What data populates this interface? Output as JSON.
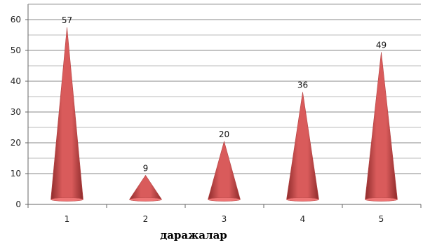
{
  "chart_data": {
    "type": "bar",
    "shape": "cone",
    "categories": [
      "1",
      "2",
      "3",
      "4",
      "5"
    ],
    "values": [
      57,
      9,
      20,
      36,
      49
    ],
    "title": "",
    "xlabel": "даражалар",
    "ylabel": "",
    "ylim": [
      0,
      60
    ],
    "yticks": [
      0,
      10,
      20,
      30,
      40,
      50,
      60
    ],
    "grid": true,
    "legend": "none",
    "colors": {
      "bar_main": "#d95b5b",
      "bar_light": "#ee7575",
      "bar_dark": "#8e2b2b",
      "grid": "#8a8a8a"
    }
  }
}
